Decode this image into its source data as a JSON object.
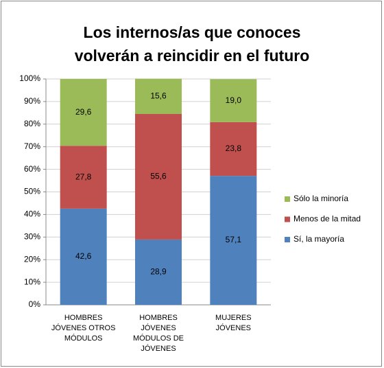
{
  "chart_data": {
    "type": "stacked_bar",
    "title": "Los internos/as que conoces volverán a reincidir en el futuro",
    "categories": [
      "HOMBRES JÓVENES OTROS MÓDULOS",
      "HOMBRES JÓVENES MÓDULOS DE JÓVENES",
      "MUJERES JÓVENES"
    ],
    "series": [
      {
        "name": "Sí, la mayoría",
        "color": "#4f81bd",
        "values": [
          42.6,
          28.9,
          57.1
        ],
        "value_labels": [
          "42,6",
          "28,9",
          "57,1"
        ]
      },
      {
        "name": "Menos de la mitad",
        "color": "#c0504d",
        "values": [
          27.8,
          55.6,
          23.8
        ],
        "value_labels": [
          "27,8",
          "55,6",
          "23,8"
        ]
      },
      {
        "name": "Sólo la minoría",
        "color": "#9bbb59",
        "values": [
          29.6,
          15.6,
          19.0
        ],
        "value_labels": [
          "29,6",
          "15,6",
          "19,0"
        ]
      }
    ],
    "ylim": [
      0,
      100
    ],
    "yticks": [
      {
        "value": 0,
        "label": "0%"
      },
      {
        "value": 10,
        "label": "10%"
      },
      {
        "value": 20,
        "label": "20%"
      },
      {
        "value": 30,
        "label": "30%"
      },
      {
        "value": 40,
        "label": "40%"
      },
      {
        "value": 50,
        "label": "50%"
      },
      {
        "value": 60,
        "label": "60%"
      },
      {
        "value": 70,
        "label": "70%"
      },
      {
        "value": 80,
        "label": "80%"
      },
      {
        "value": 90,
        "label": "90%"
      },
      {
        "value": 100,
        "label": "100%"
      }
    ],
    "grid": true,
    "legend": "right"
  }
}
